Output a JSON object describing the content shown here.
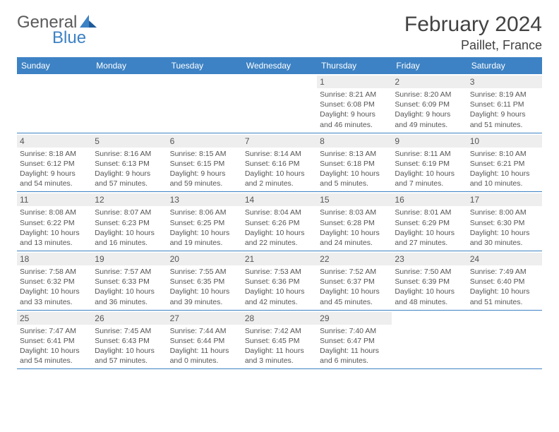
{
  "brand": {
    "part1": "General",
    "part2": "Blue"
  },
  "title": "February 2024",
  "location": "Paillet, France",
  "colors": {
    "header_bg": "#3d82c4",
    "header_text": "#ffffff",
    "daynum_bg": "#eeeeee",
    "text": "#555555",
    "rule": "#3d82c4"
  },
  "fonts": {
    "title_size": 30,
    "location_size": 18,
    "weekday_size": 12,
    "daynum_size": 12,
    "body_size": 10.5
  },
  "weekdays": [
    "Sunday",
    "Monday",
    "Tuesday",
    "Wednesday",
    "Thursday",
    "Friday",
    "Saturday"
  ],
  "weeks": [
    [
      null,
      null,
      null,
      null,
      {
        "n": "1",
        "sunrise": "8:21 AM",
        "sunset": "6:08 PM",
        "dl": "9 hours and 46 minutes."
      },
      {
        "n": "2",
        "sunrise": "8:20 AM",
        "sunset": "6:09 PM",
        "dl": "9 hours and 49 minutes."
      },
      {
        "n": "3",
        "sunrise": "8:19 AM",
        "sunset": "6:11 PM",
        "dl": "9 hours and 51 minutes."
      }
    ],
    [
      {
        "n": "4",
        "sunrise": "8:18 AM",
        "sunset": "6:12 PM",
        "dl": "9 hours and 54 minutes."
      },
      {
        "n": "5",
        "sunrise": "8:16 AM",
        "sunset": "6:13 PM",
        "dl": "9 hours and 57 minutes."
      },
      {
        "n": "6",
        "sunrise": "8:15 AM",
        "sunset": "6:15 PM",
        "dl": "9 hours and 59 minutes."
      },
      {
        "n": "7",
        "sunrise": "8:14 AM",
        "sunset": "6:16 PM",
        "dl": "10 hours and 2 minutes."
      },
      {
        "n": "8",
        "sunrise": "8:13 AM",
        "sunset": "6:18 PM",
        "dl": "10 hours and 5 minutes."
      },
      {
        "n": "9",
        "sunrise": "8:11 AM",
        "sunset": "6:19 PM",
        "dl": "10 hours and 7 minutes."
      },
      {
        "n": "10",
        "sunrise": "8:10 AM",
        "sunset": "6:21 PM",
        "dl": "10 hours and 10 minutes."
      }
    ],
    [
      {
        "n": "11",
        "sunrise": "8:08 AM",
        "sunset": "6:22 PM",
        "dl": "10 hours and 13 minutes."
      },
      {
        "n": "12",
        "sunrise": "8:07 AM",
        "sunset": "6:23 PM",
        "dl": "10 hours and 16 minutes."
      },
      {
        "n": "13",
        "sunrise": "8:06 AM",
        "sunset": "6:25 PM",
        "dl": "10 hours and 19 minutes."
      },
      {
        "n": "14",
        "sunrise": "8:04 AM",
        "sunset": "6:26 PM",
        "dl": "10 hours and 22 minutes."
      },
      {
        "n": "15",
        "sunrise": "8:03 AM",
        "sunset": "6:28 PM",
        "dl": "10 hours and 24 minutes."
      },
      {
        "n": "16",
        "sunrise": "8:01 AM",
        "sunset": "6:29 PM",
        "dl": "10 hours and 27 minutes."
      },
      {
        "n": "17",
        "sunrise": "8:00 AM",
        "sunset": "6:30 PM",
        "dl": "10 hours and 30 minutes."
      }
    ],
    [
      {
        "n": "18",
        "sunrise": "7:58 AM",
        "sunset": "6:32 PM",
        "dl": "10 hours and 33 minutes."
      },
      {
        "n": "19",
        "sunrise": "7:57 AM",
        "sunset": "6:33 PM",
        "dl": "10 hours and 36 minutes."
      },
      {
        "n": "20",
        "sunrise": "7:55 AM",
        "sunset": "6:35 PM",
        "dl": "10 hours and 39 minutes."
      },
      {
        "n": "21",
        "sunrise": "7:53 AM",
        "sunset": "6:36 PM",
        "dl": "10 hours and 42 minutes."
      },
      {
        "n": "22",
        "sunrise": "7:52 AM",
        "sunset": "6:37 PM",
        "dl": "10 hours and 45 minutes."
      },
      {
        "n": "23",
        "sunrise": "7:50 AM",
        "sunset": "6:39 PM",
        "dl": "10 hours and 48 minutes."
      },
      {
        "n": "24",
        "sunrise": "7:49 AM",
        "sunset": "6:40 PM",
        "dl": "10 hours and 51 minutes."
      }
    ],
    [
      {
        "n": "25",
        "sunrise": "7:47 AM",
        "sunset": "6:41 PM",
        "dl": "10 hours and 54 minutes."
      },
      {
        "n": "26",
        "sunrise": "7:45 AM",
        "sunset": "6:43 PM",
        "dl": "10 hours and 57 minutes."
      },
      {
        "n": "27",
        "sunrise": "7:44 AM",
        "sunset": "6:44 PM",
        "dl": "11 hours and 0 minutes."
      },
      {
        "n": "28",
        "sunrise": "7:42 AM",
        "sunset": "6:45 PM",
        "dl": "11 hours and 3 minutes."
      },
      {
        "n": "29",
        "sunrise": "7:40 AM",
        "sunset": "6:47 PM",
        "dl": "11 hours and 6 minutes."
      },
      null,
      null
    ]
  ],
  "labels": {
    "sunrise": "Sunrise:",
    "sunset": "Sunset:",
    "daylight": "Daylight:"
  }
}
